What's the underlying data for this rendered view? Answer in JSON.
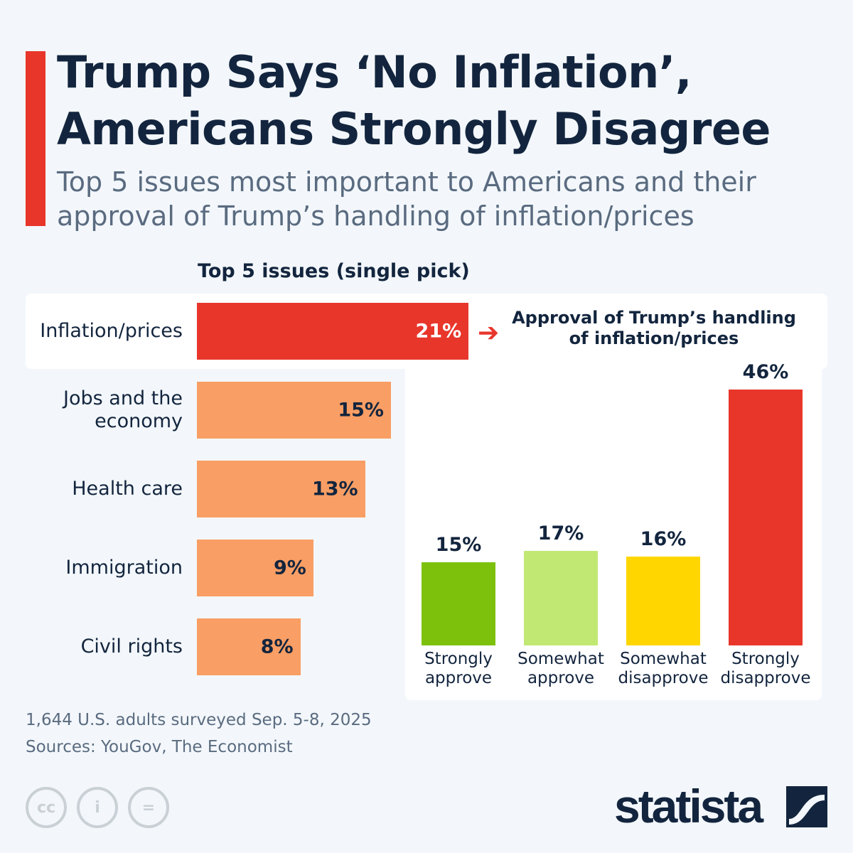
{
  "title": "Trump Says ‘No Inflation’, Americans Strongly Disagree",
  "subtitle": "Top 5 issues most important to Americans and their approval of Trump’s handling of inflation/prices",
  "notes": [
    "1,644 U.S. adults surveyed Sep. 5-8, 2025",
    "Sources: YouGov, The Economist"
  ],
  "brand": "statista",
  "colors": {
    "accent": "#e8362b",
    "issue": "#f99e64",
    "strongly_approve": "#7dc10c",
    "somewhat_approve": "#c2e874",
    "somewhat_disapprove": "#ffd600",
    "strongly_disapprove": "#e8362b",
    "text": "#13253e"
  },
  "chart_data": [
    {
      "type": "bar",
      "orientation": "horizontal",
      "title": "Top 5 issues (single pick)",
      "categories": [
        "Inflation/prices",
        "Jobs and the economy",
        "Health care",
        "Immigration",
        "Civil rights"
      ],
      "values": [
        21,
        15,
        13,
        9,
        8
      ],
      "labels": [
        "21%",
        "15%",
        "13%",
        "9%",
        "8%"
      ],
      "highlight": "Inflation/prices"
    },
    {
      "type": "bar",
      "orientation": "vertical",
      "title": "Approval of Trump’s handling of inflation/prices",
      "categories": [
        "Strongly approve",
        "Somewhat approve",
        "Somewhat disapprove",
        "Strongly disapprove"
      ],
      "values": [
        15,
        17,
        16,
        46
      ],
      "labels": [
        "15%",
        "17%",
        "16%",
        "46%"
      ]
    }
  ]
}
